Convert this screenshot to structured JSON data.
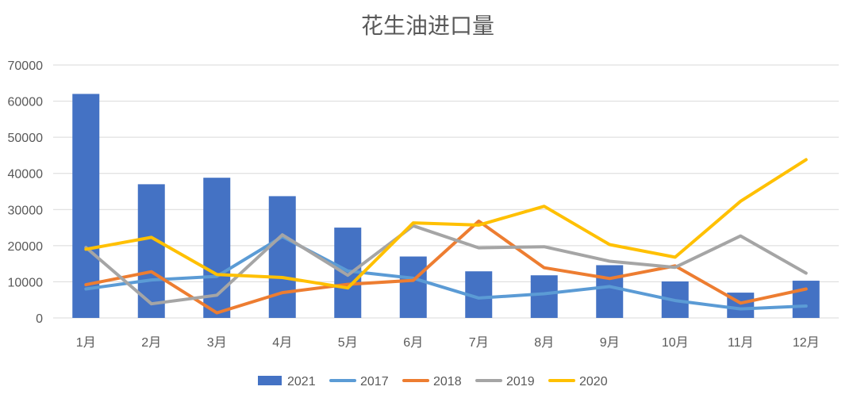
{
  "chart_data": {
    "type": "bar",
    "title": "花生油进口量",
    "categories": [
      "1月",
      "2月",
      "3月",
      "4月",
      "5月",
      "6月",
      "7月",
      "8月",
      "9月",
      "10月",
      "11月",
      "12月"
    ],
    "ylim": [
      0,
      70000
    ],
    "yticks": [
      0,
      10000,
      20000,
      30000,
      40000,
      50000,
      60000,
      70000
    ],
    "grid": true,
    "legend_position": "bottom",
    "series": [
      {
        "name": "2021",
        "kind": "bar",
        "color": "#4472c4",
        "values": [
          62000,
          37000,
          38800,
          33700,
          25000,
          17000,
          12900,
          11800,
          14600,
          10100,
          7000,
          10300
        ]
      },
      {
        "name": "2017",
        "kind": "line",
        "color": "#5b9bd5",
        "values": [
          8000,
          10500,
          11500,
          22500,
          13000,
          11000,
          5500,
          6700,
          8700,
          4800,
          2500,
          3300
        ]
      },
      {
        "name": "2018",
        "kind": "line",
        "color": "#ed7d31",
        "values": [
          9200,
          12800,
          1400,
          7000,
          9300,
          10400,
          26800,
          13900,
          10900,
          14400,
          4100,
          8000
        ]
      },
      {
        "name": "2019",
        "kind": "line",
        "color": "#a5a5a5",
        "values": [
          19500,
          3900,
          6300,
          23000,
          11800,
          25500,
          19400,
          19700,
          15700,
          14000,
          22700,
          12400
        ]
      },
      {
        "name": "2020",
        "kind": "line",
        "color": "#ffc000",
        "values": [
          19000,
          22300,
          12000,
          11200,
          8300,
          26300,
          25700,
          30900,
          20300,
          16800,
          32300,
          43800
        ]
      }
    ]
  }
}
